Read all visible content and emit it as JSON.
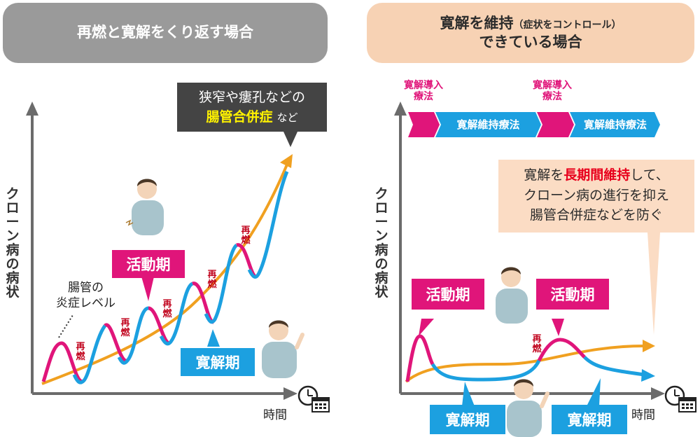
{
  "left_panel": {
    "header": "再燃と寛解をくり返す場合",
    "y_axis_label": "クローン病の病状",
    "x_axis_label": "時間",
    "callout": {
      "line1": "狭窄や瘻孔などの",
      "highlight": "腸管合併症",
      "suffix": "など"
    },
    "level_label_line1": "腸管の",
    "level_label_line2": "炎症レベル",
    "active_tag": "活動期",
    "remission_tag": "寛解期",
    "relapse_label": "再燃"
  },
  "right_panel": {
    "header_main": "寛解を維持",
    "header_small": "（症状をコントロール）",
    "header_line2": "できている場合",
    "y_axis_label": "クローン病の病状",
    "x_axis_label": "時間",
    "induction_label_1": "寛解導入",
    "induction_label_2": "療法",
    "maintenance_label": "寛解維持療法",
    "callout": {
      "prefix": "寛解を",
      "highlight": "長期間維持",
      "suffix": "して、",
      "line2": "クローン病の進行を抑え",
      "line3": "腸管合併症などを防ぐ"
    },
    "active_tag": "活動期",
    "remission_tag": "寛解期",
    "relapse_label": "再燃"
  },
  "colors": {
    "pink": "#e0157a",
    "blue": "#1ca0e0",
    "orange": "#f0a020",
    "gray_header": "#9a9a9a",
    "peach": "#f7d2b4"
  }
}
